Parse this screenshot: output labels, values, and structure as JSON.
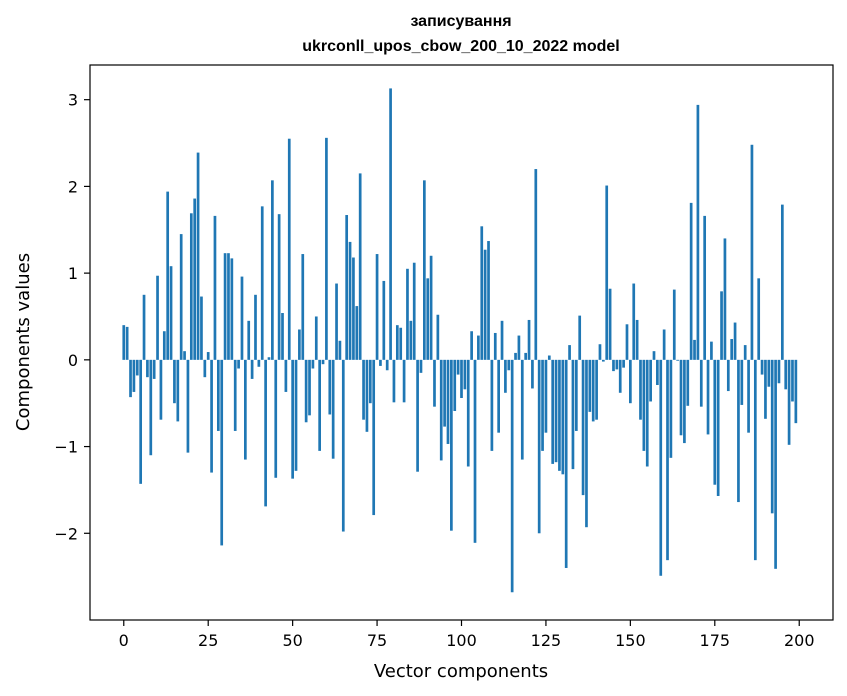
{
  "chart_data": {
    "type": "bar",
    "title": "записування",
    "subtitle": "ukrconll_upos_cbow_200_10_2022 model",
    "xlabel": "Vector components",
    "ylabel": "Components values",
    "xlim": [
      -10,
      210
    ],
    "ylim": [
      -3.0,
      3.4
    ],
    "xticks": [
      0,
      25,
      50,
      75,
      100,
      125,
      150,
      175,
      200
    ],
    "yticks": [
      -2,
      -1,
      0,
      1,
      2,
      3
    ],
    "grid": false,
    "bar_color": "#1f77b4",
    "x": [
      0,
      1,
      2,
      3,
      4,
      5,
      6,
      7,
      8,
      9,
      10,
      11,
      12,
      13,
      14,
      15,
      16,
      17,
      18,
      19,
      20,
      21,
      22,
      23,
      24,
      25,
      26,
      27,
      28,
      29,
      30,
      31,
      32,
      33,
      34,
      35,
      36,
      37,
      38,
      39,
      40,
      41,
      42,
      43,
      44,
      45,
      46,
      47,
      48,
      49,
      50,
      51,
      52,
      53,
      54,
      55,
      56,
      57,
      58,
      59,
      60,
      61,
      62,
      63,
      64,
      65,
      66,
      67,
      68,
      69,
      70,
      71,
      72,
      73,
      74,
      75,
      76,
      77,
      78,
      79,
      80,
      81,
      82,
      83,
      84,
      85,
      86,
      87,
      88,
      89,
      90,
      91,
      92,
      93,
      94,
      95,
      96,
      97,
      98,
      99,
      100,
      101,
      102,
      103,
      104,
      105,
      106,
      107,
      108,
      109,
      110,
      111,
      112,
      113,
      114,
      115,
      116,
      117,
      118,
      119,
      120,
      121,
      122,
      123,
      124,
      125,
      126,
      127,
      128,
      129,
      130,
      131,
      132,
      133,
      134,
      135,
      136,
      137,
      138,
      139,
      140,
      141,
      142,
      143,
      144,
      145,
      146,
      147,
      148,
      149,
      150,
      151,
      152,
      153,
      154,
      155,
      156,
      157,
      158,
      159,
      160,
      161,
      162,
      163,
      164,
      165,
      166,
      167,
      168,
      169,
      170,
      171,
      172,
      173,
      174,
      175,
      176,
      177,
      178,
      179,
      180,
      181,
      182,
      183,
      184,
      185,
      186,
      187,
      188,
      189,
      190,
      191,
      192,
      193,
      194,
      195,
      196,
      197,
      198,
      199
    ],
    "values": [
      0.4,
      0.38,
      -0.43,
      -0.37,
      -0.18,
      -1.43,
      0.75,
      -0.2,
      -1.1,
      -0.22,
      0.97,
      -0.69,
      0.33,
      1.94,
      1.08,
      -0.5,
      -0.71,
      1.45,
      0.1,
      -1.07,
      1.69,
      1.86,
      2.39,
      0.73,
      -0.2,
      0.09,
      -1.3,
      1.66,
      -0.82,
      -2.14,
      1.23,
      1.23,
      1.17,
      -0.82,
      -0.1,
      0.96,
      -1.15,
      0.45,
      -0.22,
      0.75,
      -0.08,
      1.77,
      -1.69,
      0.03,
      2.07,
      -1.36,
      1.68,
      0.54,
      -0.37,
      2.55,
      -1.37,
      -1.28,
      0.35,
      1.22,
      -0.72,
      -0.64,
      -0.1,
      0.5,
      -1.05,
      -0.05,
      2.56,
      -0.63,
      -1.14,
      0.88,
      0.22,
      -1.98,
      1.67,
      1.36,
      1.18,
      0.62,
      2.15,
      -0.69,
      -0.83,
      -0.5,
      -1.79,
      1.22,
      -0.07,
      0.91,
      -0.12,
      3.13,
      -0.49,
      0.4,
      0.37,
      -0.49,
      1.05,
      0.45,
      1.12,
      -1.29,
      -0.15,
      2.07,
      0.94,
      1.2,
      -0.54,
      0.52,
      -1.16,
      -0.77,
      -0.97,
      -1.97,
      -0.59,
      -0.17,
      -0.44,
      -0.34,
      -1.23,
      0.33,
      -2.11,
      0.28,
      1.54,
      1.27,
      1.37,
      -1.05,
      0.31,
      -0.84,
      0.45,
      -0.38,
      -0.12,
      -2.68,
      0.08,
      0.28,
      -1.15,
      0.08,
      0.46,
      -0.33,
      2.2,
      -2.0,
      -1.05,
      -0.84,
      0.05,
      -1.2,
      -1.18,
      -1.28,
      -1.32,
      -2.4,
      0.17,
      -1.26,
      -0.82,
      0.51,
      -1.56,
      -1.93,
      -0.6,
      -0.71,
      -0.69,
      0.18,
      -0.02,
      2.01,
      0.82,
      -0.13,
      -0.11,
      -0.38,
      -0.09,
      0.41,
      -0.5,
      0.88,
      0.46,
      -0.69,
      -1.05,
      -1.23,
      -0.48,
      0.1,
      -0.29,
      -2.49,
      0.35,
      -2.31,
      -1.13,
      0.81,
      -0.01,
      -0.87,
      -0.96,
      -0.53,
      1.81,
      0.23,
      2.94,
      -0.54,
      1.66,
      -0.86,
      0.21,
      -1.44,
      -1.57,
      0.79,
      1.4,
      -0.36,
      0.24,
      0.43,
      -1.64,
      -0.52,
      0.17,
      -0.84,
      2.48,
      -2.31,
      0.94,
      -0.17,
      -0.68,
      -0.31,
      -1.77,
      -2.41,
      -0.27,
      1.79,
      -0.34,
      -0.98,
      -0.48,
      -0.73
    ]
  }
}
